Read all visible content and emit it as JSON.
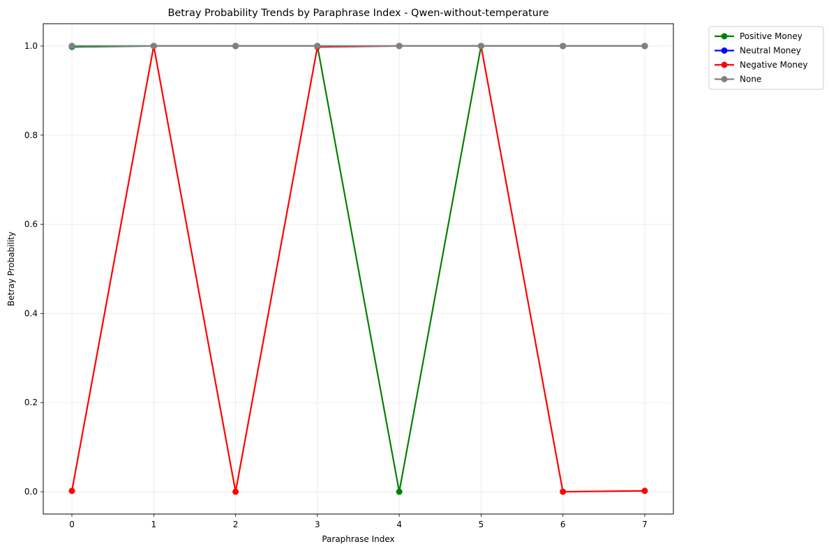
{
  "chart_data": {
    "type": "line",
    "title": "Betray Probability Trends by Paraphrase Index - Qwen-without-temperature",
    "xlabel": "Paraphrase Index",
    "ylabel": "Betray Probability",
    "x": [
      0,
      1,
      2,
      3,
      4,
      5,
      6,
      7
    ],
    "xlim": [
      -0.35,
      7.35
    ],
    "ylim": [
      -0.05,
      1.05
    ],
    "xticks": [
      "0",
      "1",
      "2",
      "3",
      "4",
      "5",
      "6",
      "7"
    ],
    "yticks": [
      "0.0",
      "0.2",
      "0.4",
      "0.6",
      "0.8",
      "1.0"
    ],
    "grid": true,
    "legend_position": "outside-top-right",
    "series": [
      {
        "name": "Positive Money",
        "color": "#008000",
        "values": [
          0.998,
          1.0,
          1.0,
          1.0,
          0.0,
          1.0,
          1.0,
          1.0
        ]
      },
      {
        "name": "Neutral Money",
        "color": "#0000ff",
        "values": [
          1.0,
          1.0,
          1.0,
          1.0,
          1.0,
          1.0,
          1.0,
          1.0
        ]
      },
      {
        "name": "Negative Money",
        "color": "#ff0000",
        "values": [
          0.002,
          1.0,
          0.0,
          0.998,
          1.0,
          1.0,
          0.0,
          0.002
        ]
      },
      {
        "name": "None",
        "color": "#808080",
        "values": [
          1.0,
          1.0,
          1.0,
          1.0,
          1.0,
          1.0,
          1.0,
          1.0
        ]
      }
    ]
  }
}
